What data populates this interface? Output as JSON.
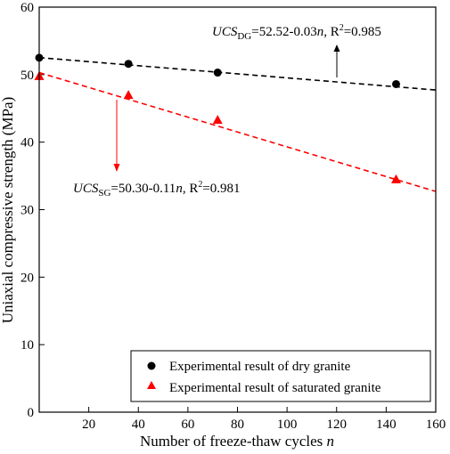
{
  "chart_data": {
    "type": "scatter",
    "xlabel": "Number of freeze-thaw cycles",
    "xlabel_var": "n",
    "ylabel": "Uniaxial compressive strength (MPa)",
    "xlim": [
      0,
      160
    ],
    "ylim": [
      0,
      60
    ],
    "xticks": [
      20,
      40,
      60,
      80,
      100,
      120,
      140,
      160
    ],
    "yticks": [
      0,
      10,
      20,
      30,
      40,
      50,
      60
    ],
    "grid": false,
    "legend_position": "bottom-right",
    "series": [
      {
        "name": "Experimental result of dry granite",
        "marker": "circle",
        "color": "#000000",
        "x": [
          0,
          36,
          72,
          144
        ],
        "y": [
          52.5,
          51.6,
          50.3,
          48.6
        ],
        "fit": {
          "intercept": 52.52,
          "slope": -0.03,
          "style": "dashed",
          "color": "#000000"
        }
      },
      {
        "name": "Experimental result of saturated granite",
        "marker": "triangle",
        "color": "#ff0000",
        "x": [
          0,
          36,
          72,
          144
        ],
        "y": [
          49.8,
          47.0,
          43.3,
          34.5
        ],
        "fit": {
          "intercept": 50.3,
          "slope": -0.11,
          "style": "dashed",
          "color": "#ff0000"
        }
      }
    ],
    "annotations": [
      {
        "id": "dg",
        "prefix": "UCS",
        "sub": "DG",
        "expr_main": "=52.52-0.03",
        "expr_var": "n",
        "r2_sep": ", R",
        "r2_sup": "2",
        "r2_val": "=0.985",
        "arrow_color": "#000000"
      },
      {
        "id": "sg",
        "prefix": "UCS",
        "sub": "SG",
        "expr_main": "=50.30-0.11",
        "expr_var": "n",
        "r2_sep": ", R",
        "r2_sup": "2",
        "r2_val": "=0.981",
        "arrow_color": "#ff0000"
      }
    ]
  }
}
